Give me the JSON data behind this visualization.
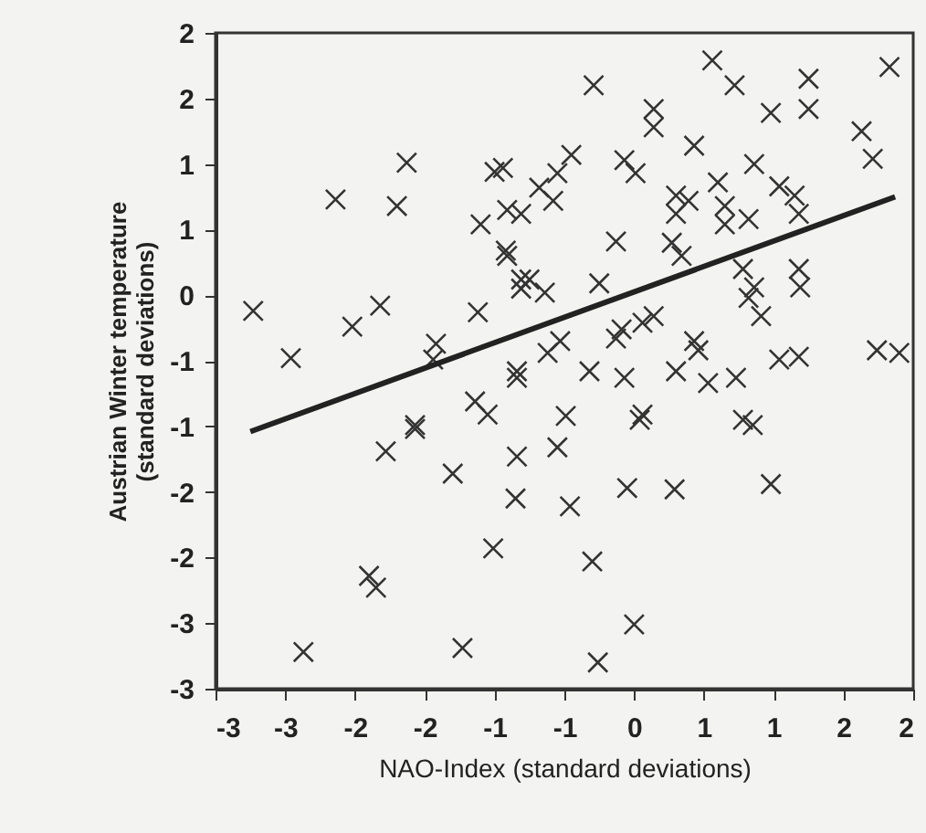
{
  "chart_data": {
    "type": "scatter",
    "xlabel": "NAO-Index (standard deviations)",
    "ylabel": "Austrian Winter temperature\n(standard deviations)",
    "xlim": [
      -3,
      2
    ],
    "ylim": [
      -3,
      2
    ],
    "xticks": [
      {
        "value": -3,
        "label": "-3"
      },
      {
        "value": -2.5,
        "label": "-3"
      },
      {
        "value": -2,
        "label": "-2"
      },
      {
        "value": -1.5,
        "label": "-2"
      },
      {
        "value": -1,
        "label": "-1"
      },
      {
        "value": -0.5,
        "label": "-1"
      },
      {
        "value": 0,
        "label": "0"
      },
      {
        "value": 0.5,
        "label": "1"
      },
      {
        "value": 1,
        "label": "1"
      },
      {
        "value": 1.5,
        "label": "2"
      },
      {
        "value": 2,
        "label": "2"
      }
    ],
    "yticks": [
      {
        "value": -3,
        "label": "-3"
      },
      {
        "value": -2.5,
        "label": "-3"
      },
      {
        "value": -2,
        "label": "-2"
      },
      {
        "value": -1.5,
        "label": "-2"
      },
      {
        "value": -1,
        "label": "-1"
      },
      {
        "value": -0.5,
        "label": "-1"
      },
      {
        "value": 0,
        "label": "0"
      },
      {
        "value": 0.5,
        "label": "1"
      },
      {
        "value": 1,
        "label": "1"
      },
      {
        "value": 1.5,
        "label": "2"
      },
      {
        "value": 2,
        "label": "2"
      }
    ],
    "grid": false,
    "series": [
      {
        "color": "#333333",
        "marker": "cross",
        "x": [
          -2.73,
          -2.46,
          -2.14,
          -1.7,
          -1.63,
          -2.02,
          -1.82,
          -1.0,
          -1.1,
          -0.91,
          -0.91,
          -0.81,
          -1.12,
          -1.42,
          -1.44,
          -1.14,
          -1.05,
          -1.57,
          -0.84,
          -1.78,
          -1.57,
          -1.3,
          -1.01,
          -1.9,
          -1.85,
          -2.37,
          -1.23,
          -0.84,
          -0.85,
          -0.49,
          0.06,
          -0.55,
          -0.46,
          -0.05,
          0.29,
          0.98,
          -0.3,
          0.0,
          -0.26,
          0.78,
          0.85,
          -0.29,
          0.56,
          0.72,
          0.98,
          1.25,
          1.25,
          1.83,
          1.63,
          1.71,
          0.14,
          0.14,
          0.43,
          -0.07,
          0.01,
          -0.45,
          -0.55,
          -0.68,
          -0.58,
          -0.94,
          -0.81,
          -0.92,
          -0.75,
          -0.64,
          -0.81,
          -0.13,
          -0.25,
          -0.09,
          0.06,
          0.14,
          0.3,
          0.3,
          0.39,
          0.6,
          0.65,
          0.86,
          1.04,
          1.15,
          1.18,
          0.65,
          0.82,
          0.27,
          0.34,
          0.78,
          0.86,
          0.82,
          0.91,
          1.18,
          1.19,
          0.43,
          0.46,
          0.3,
          0.53,
          0.73,
          1.04,
          1.18,
          1.74,
          1.9,
          -0.13,
          -0.32,
          -0.07,
          0.04,
          -0.53,
          -0.62,
          -0.84
        ],
        "values": [
          -0.12,
          -0.48,
          0.73,
          0.68,
          1.01,
          -0.24,
          -0.08,
          0.94,
          0.54,
          0.65,
          0.3,
          0.12,
          -0.13,
          -0.37,
          -0.49,
          -0.81,
          -0.91,
          -0.99,
          -0.63,
          -1.19,
          -1.02,
          -1.36,
          -1.93,
          -2.14,
          -2.23,
          -2.72,
          -2.69,
          -1.23,
          -1.55,
          -0.92,
          -0.91,
          -1.16,
          -1.61,
          -1.47,
          -1.48,
          -1.44,
          -2.03,
          -2.51,
          -2.8,
          -0.95,
          -0.99,
          1.6,
          1.79,
          1.6,
          1.39,
          1.65,
          1.42,
          1.74,
          1.25,
          1.04,
          1.42,
          1.28,
          1.14,
          1.03,
          0.93,
          1.07,
          0.93,
          0.82,
          0.72,
          0.97,
          0.62,
          0.34,
          0.12,
          0.02,
          0.05,
          0.41,
          0.09,
          -0.26,
          -0.21,
          -0.16,
          0.76,
          0.62,
          0.72,
          0.86,
          0.68,
          1.0,
          0.83,
          0.76,
          0.62,
          0.54,
          0.58,
          0.4,
          0.3,
          0.2,
          0.06,
          -0.02,
          -0.16,
          0.2,
          0.06,
          -0.35,
          -0.42,
          -0.58,
          -0.67,
          -0.63,
          -0.49,
          -0.47,
          -0.42,
          -0.44,
          -0.33,
          -0.58,
          -0.63,
          -0.95,
          -0.35,
          -0.44,
          -0.58
        ]
      },
      {
        "color": "#222222",
        "type": "line",
        "x": [
          -2.75,
          1.87
        ],
        "values": [
          -1.04,
          0.75
        ]
      }
    ]
  }
}
